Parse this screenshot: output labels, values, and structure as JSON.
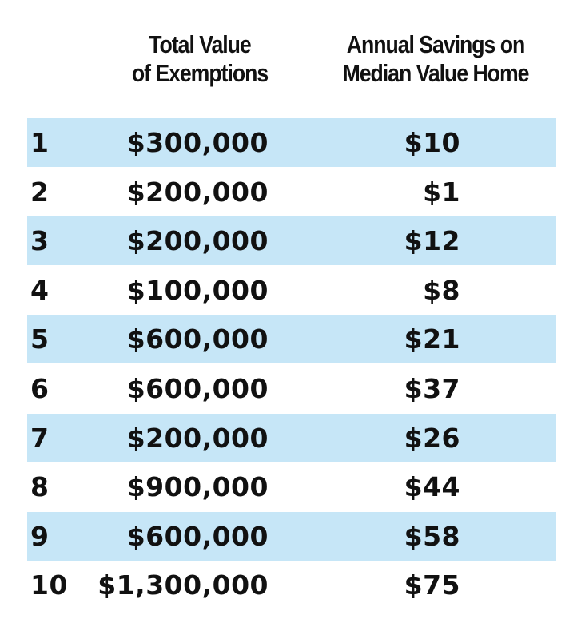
{
  "headers": {
    "total_line1": "Total Value",
    "total_line2": "of Exemptions",
    "savings_line1": "Annual Savings on",
    "savings_line2": "Median Value Home"
  },
  "colors": {
    "row_shade": "#c6e6f7",
    "text": "#111111"
  },
  "chart_data": {
    "type": "table",
    "columns": [
      "",
      "Total Value of Exemptions",
      "Annual Savings on Median Value Home"
    ],
    "rows": [
      {
        "rank": "1",
        "total": "$300,000",
        "savings": "$10"
      },
      {
        "rank": "2",
        "total": "$200,000",
        "savings": "$1"
      },
      {
        "rank": "3",
        "total": "$200,000",
        "savings": "$12"
      },
      {
        "rank": "4",
        "total": "$100,000",
        "savings": "$8"
      },
      {
        "rank": "5",
        "total": "$600,000",
        "savings": "$21"
      },
      {
        "rank": "6",
        "total": "$600,000",
        "savings": "$37"
      },
      {
        "rank": "7",
        "total": "$200,000",
        "savings": "$26"
      },
      {
        "rank": "8",
        "total": "$900,000",
        "savings": "$44"
      },
      {
        "rank": "9",
        "total": "$600,000",
        "savings": "$58"
      },
      {
        "rank": "10",
        "total": "$1,300,000",
        "savings": "$75"
      }
    ]
  }
}
